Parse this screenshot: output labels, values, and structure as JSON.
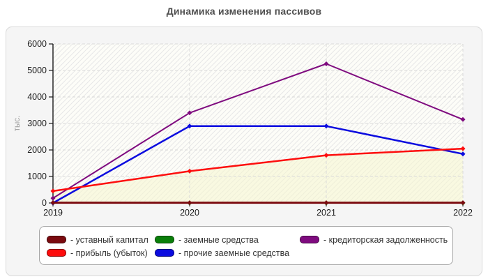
{
  "title": "Динамика изменения пассивов",
  "chart_data": {
    "type": "line",
    "title": "Динамика изменения пассивов",
    "x_labels": [
      "2019",
      "2020",
      "2021",
      "2022"
    ],
    "xlabel": "",
    "ylabel": "тыс.",
    "ylim": [
      0,
      6000
    ],
    "ytick_step": 1000,
    "grid": true,
    "legend_position": "bottom-box",
    "series": [
      {
        "name": "уставный капитал",
        "legend_label": "- уставный капитал",
        "color": "#7b0b10",
        "line_width": 3,
        "values": [
          10,
          10,
          10,
          10
        ]
      },
      {
        "name": "прибыль (убыток)",
        "legend_label": "- прибыль (убыток)",
        "color": "#fd0d0d",
        "line_width": 2.5,
        "area_fill": "rgba(246,246,205,0.55)",
        "values": [
          450,
          1200,
          1800,
          2050
        ]
      },
      {
        "name": "заемные средства",
        "legend_label": "- заемные средства",
        "color": "#0a7f0a",
        "line_width": 2,
        "values": [
          0,
          0,
          0,
          0
        ]
      },
      {
        "name": "прочие заемные средства",
        "legend_label": "- прочие заемные средства",
        "color": "#0b0bdf",
        "line_width": 2.5,
        "values": [
          0,
          2900,
          2900,
          1850
        ]
      },
      {
        "name": "кредиторская задолженность",
        "legend_label": "- кредиторская задолженность",
        "color": "#7f0b7f",
        "line_width": 2,
        "values": [
          180,
          3400,
          5250,
          3150
        ]
      }
    ],
    "draw_order": [
      2,
      4,
      3,
      1,
      0
    ],
    "colors": {
      "axis": "#1a1a1a",
      "tick_text": "#1a1a1a",
      "grid": "#d9d9d9",
      "plot_bg": "#fdfdf8",
      "hatch": "#e7e7e7",
      "panel_bg": "#f5f5f5"
    }
  }
}
